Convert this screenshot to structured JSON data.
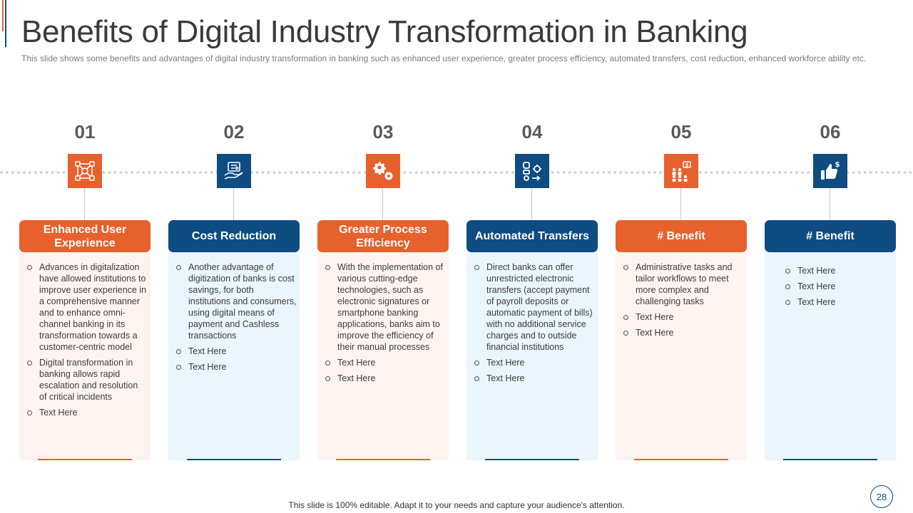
{
  "slide": {
    "title": "Benefits of Digital Industry Transformation in Banking",
    "subtitle": "This slide shows some benefits and advantages of digital industry transformation in banking such as enhanced user experience, greater process efficiency, automated transfers, cost reduction, enhanced workforce ability etc.",
    "footer": "This slide is 100% editable. Adapt it to your needs and capture your audience's attention.",
    "page_number": "28"
  },
  "colors": {
    "orange": "#e8602c",
    "blue": "#0e4c82"
  },
  "benefits": [
    {
      "number": "01",
      "icon": "network-nodes-icon",
      "heading": "Enhanced User Experience",
      "bullets": [
        "Advances in digitalization have allowed institutions to improve user experience in a comprehensive manner and to enhance omni-channel banking in its transformation towards a customer-centric model",
        "Digital transformation in banking allows rapid escalation and resolution of critical incidents",
        "Text Here"
      ]
    },
    {
      "number": "02",
      "icon": "cost-reduction-hand-icon",
      "heading": "Cost Reduction",
      "bullets": [
        "Another advantage of digitization of banks is cost savings, for both institutions and consumers, using digital means of payment and Cashless transactions",
        "Text Here",
        "Text Here"
      ]
    },
    {
      "number": "03",
      "icon": "gears-icon",
      "heading": "Greater Process Efficiency",
      "bullets": [
        "With the implementation of various cutting-edge technologies, such as electronic signatures or smartphone banking applications, banks aim to improve the efficiency of their manual processes",
        "Text Here",
        "Text Here"
      ]
    },
    {
      "number": "04",
      "icon": "workflow-automation-icon",
      "heading": "Automated Transfers",
      "bullets": [
        "Direct banks can offer unrestricted electronic transfers (accept payment of payroll deposits or automatic payment of bills) with no additional service charges and to outside financial institutions",
        "Text Here",
        "Text Here"
      ]
    },
    {
      "number": "05",
      "icon": "workforce-dollar-icon",
      "heading": "# Benefit",
      "bullets": [
        "Administrative tasks and tailor workflows to meet more complex and challenging tasks",
        "Text Here",
        "Text Here"
      ]
    },
    {
      "number": "06",
      "icon": "thumbs-up-dollar-icon",
      "heading": "# Benefit",
      "bullets": [
        "Text Here",
        "Text Here",
        "Text Here"
      ]
    }
  ]
}
